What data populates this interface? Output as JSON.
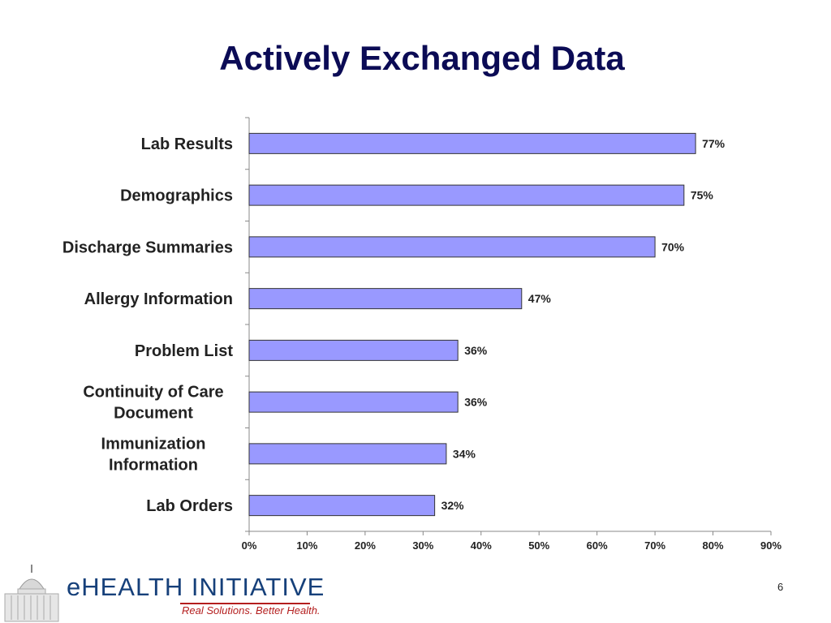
{
  "slide": {
    "title": "Actively Exchanged Data",
    "page_number": "6"
  },
  "logo": {
    "name": "eHEALTH INITIATIVE",
    "tagline": "Real Solutions. Better Health."
  },
  "colors": {
    "title": "#0b0b55",
    "bar_fill": "#9999ff",
    "bar_stroke": "#333333",
    "axis": "#888888",
    "logo_blue": "#16407a",
    "logo_red": "#b41e1e"
  },
  "chart_data": {
    "type": "bar",
    "orientation": "horizontal",
    "categories": [
      [
        "Lab Results"
      ],
      [
        "Demographics"
      ],
      [
        "Discharge Summaries"
      ],
      [
        "Allergy Information"
      ],
      [
        "Problem List"
      ],
      [
        "Continuity of Care",
        "Document"
      ],
      [
        "Immunization",
        "Information"
      ],
      [
        "Lab Orders"
      ]
    ],
    "values": [
      77,
      75,
      70,
      47,
      36,
      36,
      34,
      32
    ],
    "value_labels": [
      "77%",
      "75%",
      "70%",
      "47%",
      "36%",
      "36%",
      "34%",
      "32%"
    ],
    "xlim": [
      0,
      90
    ],
    "ticks": [
      0,
      10,
      20,
      30,
      40,
      50,
      60,
      70,
      80,
      90
    ],
    "tick_labels": [
      "0%",
      "10%",
      "20%",
      "30%",
      "40%",
      "50%",
      "60%",
      "70%",
      "80%",
      "90%"
    ],
    "grid": false,
    "legend": "none"
  }
}
